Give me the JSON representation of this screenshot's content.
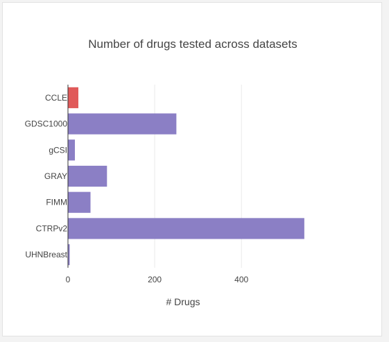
{
  "chart_data": {
    "type": "bar",
    "orientation": "horizontal",
    "title": "Number of drugs tested across datasets",
    "xlabel": "# Drugs",
    "ylabel": "",
    "xlim": [
      0,
      550
    ],
    "x_ticks": [
      0,
      200,
      400
    ],
    "grid": true,
    "legend": "none",
    "categories": [
      "CCLE",
      "GDSC1000",
      "gCSI",
      "GRAY",
      "FIMM",
      "CTRPv2",
      "UHNBreast"
    ],
    "values": [
      24,
      250,
      16,
      90,
      52,
      545,
      4
    ],
    "colors": [
      "#e05a5a",
      "#8b7fc5",
      "#8b7fc5",
      "#8b7fc5",
      "#8b7fc5",
      "#8b7fc5",
      "#8b7fc5"
    ]
  },
  "colors": {
    "highlight": "#e05a5a",
    "bar": "#8b7fc5",
    "grid": "#e8e8e8",
    "axis": "#333333"
  }
}
